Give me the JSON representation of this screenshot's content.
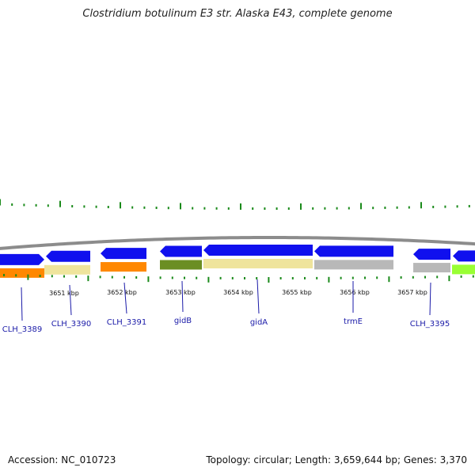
{
  "title": "Clostridium botulinum E3 str. Alaska E43, complete genome",
  "footer": {
    "accession": "Accession: NC_010723",
    "stats": "Topology: circular; Length: 3,659,644 bp; Genes: 3,370"
  },
  "colors": {
    "cds": "#1010ee",
    "orange": "#ff8800",
    "pale_yellow": "#efe49c",
    "olive": "#6b8e23",
    "gray": "#b8b8b8",
    "lime": "#99ff33",
    "tick": "#1a8a1a",
    "backbone": "#8c8c8c",
    "label_line": "#1a1aa8"
  },
  "scale_ticks": [
    {
      "label": "3651 kbp"
    },
    {
      "label": "3652 kbp"
    },
    {
      "label": "3653 kbp"
    },
    {
      "label": "3654 kbp"
    },
    {
      "label": "3655 kbp"
    },
    {
      "label": "3656 kbp"
    },
    {
      "label": "3657 kbp"
    }
  ],
  "gene_labels": [
    {
      "name": "CLH_3389"
    },
    {
      "name": "CLH_3390"
    },
    {
      "name": "CLH_3391"
    },
    {
      "name": "gidB"
    },
    {
      "name": "gidA"
    },
    {
      "name": "trmE"
    },
    {
      "name": "CLH_3395"
    }
  ]
}
